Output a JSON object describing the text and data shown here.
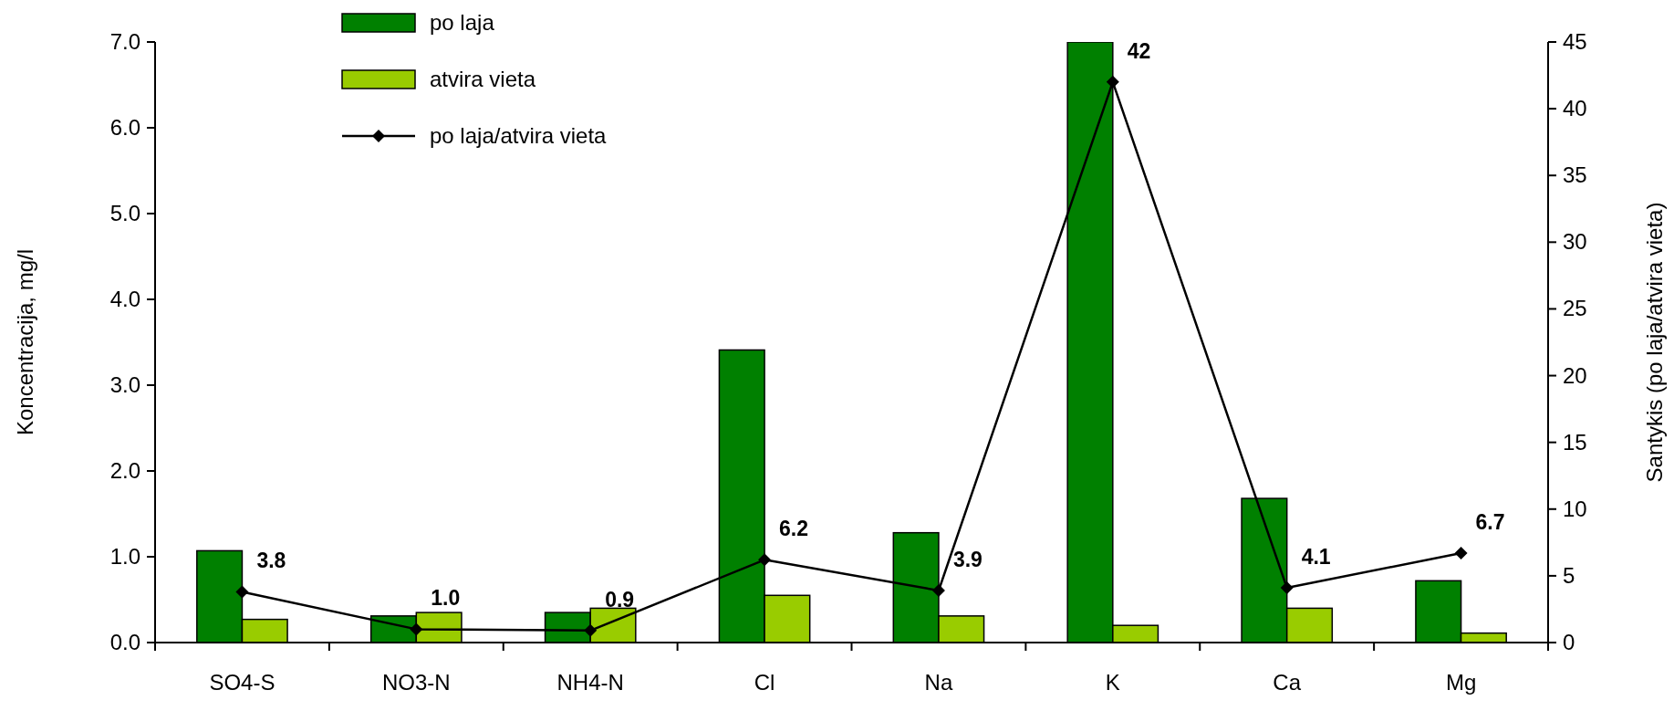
{
  "chart_data": {
    "type": "bar",
    "ylabel": "Koncentracija, mg/l",
    "y2label": "Santykis (po laja/atvira vieta)",
    "categories": [
      "SO4-S",
      "NO3-N",
      "NH4-N",
      "Cl",
      "Na",
      "K",
      "Ca",
      "Mg"
    ],
    "series": [
      {
        "name": "po laja",
        "color": "#008000",
        "values": [
          1.07,
          0.31,
          0.35,
          3.41,
          1.28,
          7.0,
          1.68,
          0.72
        ]
      },
      {
        "name": "atvira vieta",
        "color": "#99cc00",
        "values": [
          0.27,
          0.35,
          0.4,
          0.55,
          0.31,
          0.2,
          0.4,
          0.11
        ]
      },
      {
        "name": "po laja/atvira vieta",
        "type": "line",
        "axis": "y2",
        "color": "#000000",
        "marker": "diamond",
        "values": [
          3.8,
          1.0,
          0.9,
          6.2,
          3.9,
          42,
          4.1,
          6.7
        ],
        "value_labels": [
          "3.8",
          "1.0",
          "0.9",
          "6.2",
          "3.9",
          "42",
          "4.1",
          "6.7"
        ]
      }
    ],
    "ylim": [
      0,
      7
    ],
    "yticks": [
      {
        "value": 0,
        "label": "0.0"
      },
      {
        "value": 1,
        "label": "1.0"
      },
      {
        "value": 2,
        "label": "2.0"
      },
      {
        "value": 3,
        "label": "3.0"
      },
      {
        "value": 4,
        "label": "4.0"
      },
      {
        "value": 5,
        "label": "5.0"
      },
      {
        "value": 6,
        "label": "6.0"
      },
      {
        "value": 7,
        "label": "7.0"
      }
    ],
    "y2lim": [
      0,
      45
    ],
    "y2ticks": [
      0,
      5,
      10,
      15,
      20,
      25,
      30,
      35,
      40,
      45
    ],
    "legend": "top left",
    "grid": false
  }
}
